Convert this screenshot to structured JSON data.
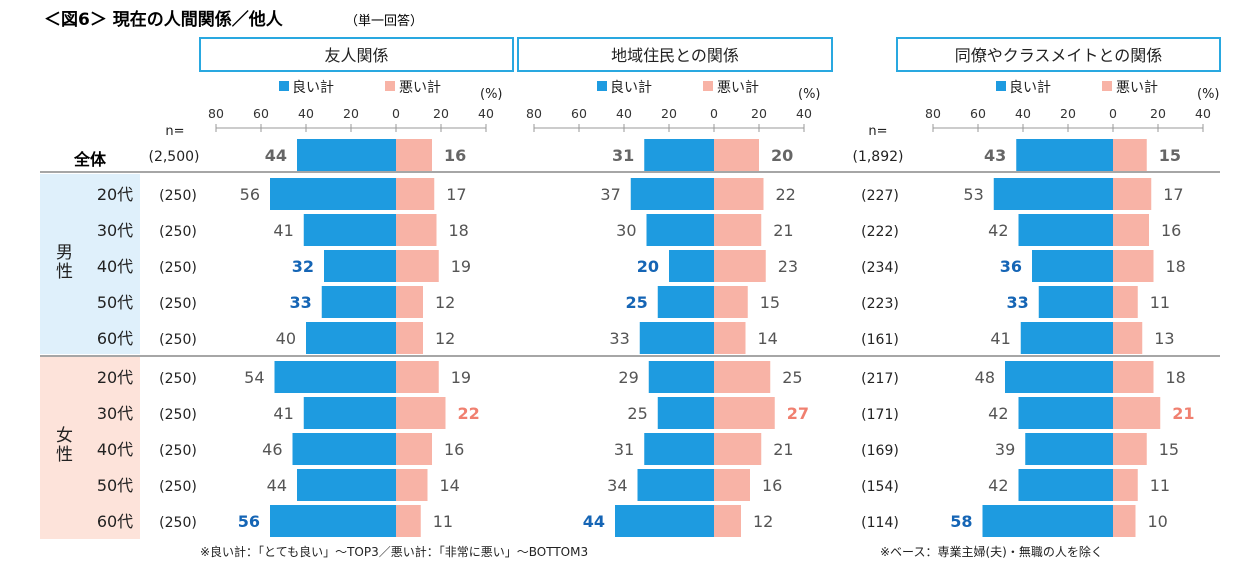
{
  "title": "＜図6＞ 現在の人間関係／他人",
  "subtitle": "（単一回答）",
  "n_label": "n=",
  "unit": "(%)",
  "legend": {
    "good": "良い計",
    "bad": "悪い計"
  },
  "colors": {
    "good": "#1E9BE0",
    "bad": "#F8B3A6",
    "good_highlight": "#1565B5",
    "bad_highlight": "#F08070",
    "normal_text": "#555555",
    "total_text": "#666666",
    "panel_border": "#29A8E0",
    "male_bg": "#DFF0FB",
    "female_bg": "#FDE3DA"
  },
  "groups": {
    "male": "男性",
    "female": "女性"
  },
  "total_label": "全体",
  "row_labels": [
    "20代",
    "30代",
    "40代",
    "50代",
    "60代",
    "20代",
    "30代",
    "40代",
    "50代",
    "60代"
  ],
  "n_left": {
    "total": "(2,500)",
    "rows": [
      "(250)",
      "(250)",
      "(250)",
      "(250)",
      "(250)",
      "(250)",
      "(250)",
      "(250)",
      "(250)",
      "(250)"
    ]
  },
  "n_right": {
    "total": "(1,892)",
    "rows": [
      "(227)",
      "(222)",
      "(234)",
      "(223)",
      "(161)",
      "(217)",
      "(171)",
      "(169)",
      "(154)",
      "(114)"
    ]
  },
  "footnote_left": "※良い計：「とても良い」～TOP3／悪い計：「非常に悪い」～BOTTOM3",
  "footnote_right": "※ベース：専業主婦(夫)・無職の人を除く",
  "chart_data": {
    "type": "bar",
    "orientation": "horizontal-diverging",
    "categories": [
      "全体",
      "男性20代",
      "男性30代",
      "男性40代",
      "男性50代",
      "男性60代",
      "女性20代",
      "女性30代",
      "女性40代",
      "女性50代",
      "女性60代"
    ],
    "axis_ticks": [
      "80",
      "60",
      "40",
      "20",
      "0",
      "20",
      "40"
    ],
    "xlim": [
      -80,
      40
    ],
    "panels": [
      {
        "name": "友人関係",
        "good": [
          44,
          56,
          41,
          32,
          33,
          40,
          54,
          41,
          46,
          44,
          56
        ],
        "bad": [
          16,
          17,
          18,
          19,
          12,
          12,
          19,
          22,
          16,
          14,
          11
        ],
        "good_high": [
          false,
          false,
          false,
          true,
          true,
          false,
          false,
          false,
          false,
          false,
          true
        ],
        "bad_high": [
          false,
          false,
          false,
          false,
          false,
          false,
          false,
          true,
          false,
          false,
          false
        ]
      },
      {
        "name": "地域住民との関係",
        "good": [
          31,
          37,
          30,
          20,
          25,
          33,
          29,
          25,
          31,
          34,
          44
        ],
        "bad": [
          20,
          22,
          21,
          23,
          15,
          14,
          25,
          27,
          21,
          16,
          12
        ],
        "good_high": [
          false,
          false,
          false,
          true,
          true,
          false,
          false,
          false,
          false,
          false,
          true
        ],
        "bad_high": [
          false,
          false,
          false,
          false,
          false,
          false,
          false,
          true,
          false,
          false,
          false
        ]
      },
      {
        "name": "同僚やクラスメイトとの関係",
        "good": [
          43,
          53,
          42,
          36,
          33,
          41,
          48,
          42,
          39,
          42,
          58
        ],
        "bad": [
          15,
          17,
          16,
          18,
          11,
          13,
          18,
          21,
          15,
          11,
          10
        ],
        "good_high": [
          false,
          false,
          false,
          true,
          true,
          false,
          false,
          false,
          false,
          false,
          true
        ],
        "bad_high": [
          false,
          false,
          false,
          false,
          false,
          false,
          false,
          true,
          false,
          false,
          false
        ]
      }
    ]
  }
}
